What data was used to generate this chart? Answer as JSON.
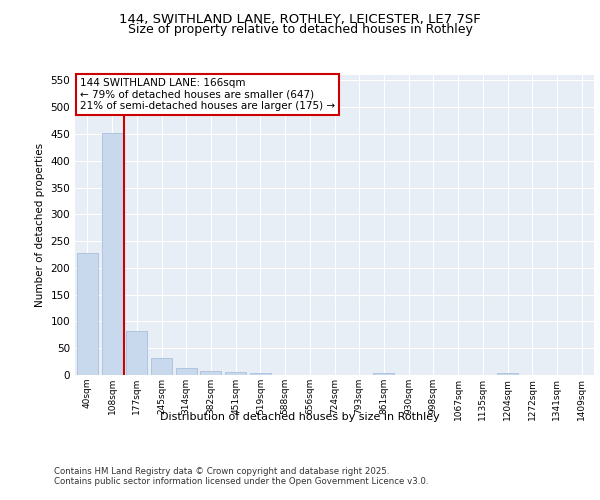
{
  "title1": "144, SWITHLAND LANE, ROTHLEY, LEICESTER, LE7 7SF",
  "title2": "Size of property relative to detached houses in Rothley",
  "xlabel": "Distribution of detached houses by size in Rothley",
  "ylabel": "Number of detached properties",
  "categories": [
    "40sqm",
    "108sqm",
    "177sqm",
    "245sqm",
    "314sqm",
    "382sqm",
    "451sqm",
    "519sqm",
    "588sqm",
    "656sqm",
    "724sqm",
    "793sqm",
    "861sqm",
    "930sqm",
    "998sqm",
    "1067sqm",
    "1135sqm",
    "1204sqm",
    "1272sqm",
    "1341sqm",
    "1409sqm"
  ],
  "values": [
    228,
    452,
    83,
    31,
    13,
    8,
    6,
    3,
    0,
    0,
    0,
    0,
    3,
    0,
    0,
    0,
    0,
    3,
    0,
    0,
    0
  ],
  "bar_color": "#c9d9ed",
  "bar_edge_color": "#a0b8d8",
  "vline_color": "#cc0000",
  "vline_position": 1.5,
  "annotation_title": "144 SWITHLAND LANE: 166sqm",
  "annotation_line1": "← 79% of detached houses are smaller (647)",
  "annotation_line2": "21% of semi-detached houses are larger (175) →",
  "annotation_box_color": "#cc0000",
  "ylim": [
    0,
    560
  ],
  "yticks": [
    0,
    50,
    100,
    150,
    200,
    250,
    300,
    350,
    400,
    450,
    500,
    550
  ],
  "bg_color": "#e8eef5",
  "footer1": "Contains HM Land Registry data © Crown copyright and database right 2025.",
  "footer2": "Contains public sector information licensed under the Open Government Licence v3.0."
}
